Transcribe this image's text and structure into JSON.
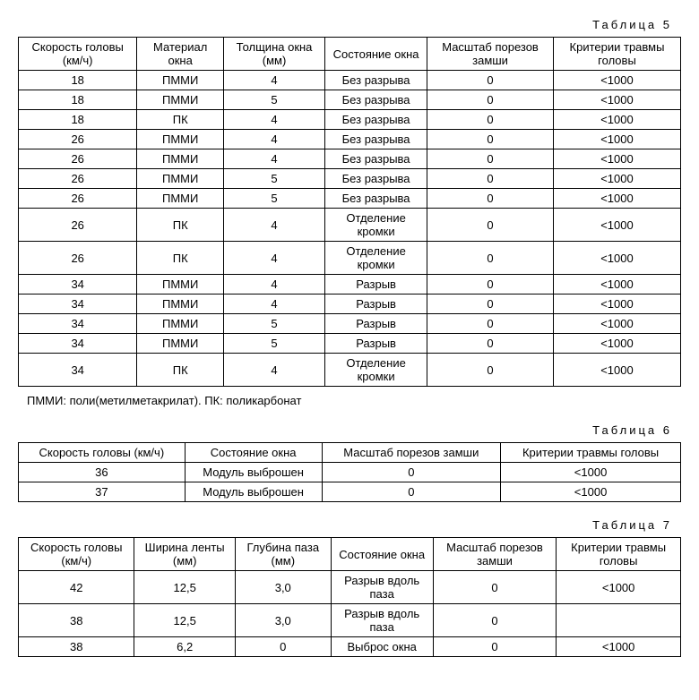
{
  "table5": {
    "title": "Таблица 5",
    "columns": [
      "Скорость головы (км/ч)",
      "Материал окна",
      "Толщина окна (мм)",
      "Состояние окна",
      "Масштаб порезов замши",
      "Критерии травмы головы"
    ],
    "rows": [
      [
        "18",
        "ПММИ",
        "4",
        "Без разрыва",
        "0",
        "<1000"
      ],
      [
        "18",
        "ПММИ",
        "5",
        "Без разрыва",
        "0",
        "<1000"
      ],
      [
        "18",
        "ПК",
        "4",
        "Без разрыва",
        "0",
        "<1000"
      ],
      [
        "26",
        "ПММИ",
        "4",
        "Без разрыва",
        "0",
        "<1000"
      ],
      [
        "26",
        "ПММИ",
        "4",
        "Без разрыва",
        "0",
        "<1000"
      ],
      [
        "26",
        "ПММИ",
        "5",
        "Без разрыва",
        "0",
        "<1000"
      ],
      [
        "26",
        "ПММИ",
        "5",
        "Без разрыва",
        "0",
        "<1000"
      ],
      [
        "26",
        "ПК",
        "4",
        "Отделение кромки",
        "0",
        "<1000"
      ],
      [
        "26",
        "ПК",
        "4",
        "Отделение кромки",
        "0",
        "<1000"
      ],
      [
        "34",
        "ПММИ",
        "4",
        "Разрыв",
        "0",
        "<1000"
      ],
      [
        "34",
        "ПММИ",
        "4",
        "Разрыв",
        "0",
        "<1000"
      ],
      [
        "34",
        "ПММИ",
        "5",
        "Разрыв",
        "0",
        "<1000"
      ],
      [
        "34",
        "ПММИ",
        "5",
        "Разрыв",
        "0",
        "<1000"
      ],
      [
        "34",
        "ПК",
        "4",
        "Отделение кромки",
        "0",
        "<1000"
      ]
    ],
    "note": "ПММИ: поли(метилметакрилат). ПК: поликарбонат"
  },
  "table6": {
    "title": "Таблица 6",
    "columns": [
      "Скорость головы (км/ч)",
      "Состояние окна",
      "Масштаб порезов замши",
      "Критерии травмы головы"
    ],
    "rows": [
      [
        "36",
        "Модуль выброшен",
        "0",
        "<1000"
      ],
      [
        "37",
        "Модуль выброшен",
        "0",
        "<1000"
      ]
    ]
  },
  "table7": {
    "title": "Таблица 7",
    "columns": [
      "Скорость головы (км/ч)",
      "Ширина ленты (мм)",
      "Глубина паза (мм)",
      "Состояние окна",
      "Масштаб порезов замши",
      "Критерии травмы головы"
    ],
    "rows": [
      [
        "42",
        "12,5",
        "3,0",
        "Разрыв вдоль паза",
        "0",
        "<1000"
      ],
      [
        "38",
        "12,5",
        "3,0",
        "Разрыв вдоль паза",
        "0",
        ""
      ],
      [
        "38",
        "6,2",
        "0",
        "Выброс окна",
        "0",
        "<1000"
      ]
    ]
  },
  "style": {
    "font_family": "Arial, sans-serif",
    "base_font_size": 13,
    "title_letter_spacing": 3,
    "border_color": "#000000",
    "background_color": "#ffffff",
    "text_color": "#000000"
  }
}
